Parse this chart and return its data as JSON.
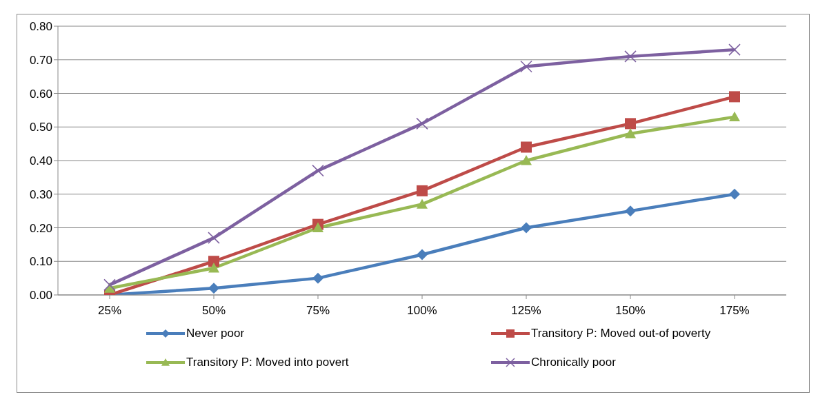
{
  "chart_data": {
    "type": "line",
    "categories": [
      "25%",
      "50%",
      "75%",
      "100%",
      "125%",
      "150%",
      "175%"
    ],
    "series": [
      {
        "name": "Never poor",
        "color": "#4a7ebb",
        "marker": "diamond",
        "values": [
          0.0,
          0.02,
          0.05,
          0.12,
          0.2,
          0.25,
          0.3
        ]
      },
      {
        "name": "Transitory P: Moved out-of poverty",
        "color": "#be4b48",
        "marker": "square",
        "values": [
          0.0,
          0.1,
          0.21,
          0.31,
          0.44,
          0.51,
          0.59
        ]
      },
      {
        "name": "Transitory P: Moved into povert",
        "color": "#98b954",
        "marker": "triangle",
        "values": [
          0.02,
          0.08,
          0.2,
          0.27,
          0.4,
          0.48,
          0.53
        ]
      },
      {
        "name": "Chronically poor",
        "color": "#7d60a0",
        "marker": "cross",
        "values": [
          0.03,
          0.17,
          0.37,
          0.51,
          0.68,
          0.71,
          0.73
        ]
      }
    ],
    "ylim": [
      0,
      0.8
    ],
    "yticks": [
      {
        "value": 0,
        "label": "0.00"
      },
      {
        "value": 0.1,
        "label": "0.10"
      },
      {
        "value": 0.2,
        "label": "0.20"
      },
      {
        "value": 0.3,
        "label": "0.30"
      },
      {
        "value": 0.4,
        "label": "0.40"
      },
      {
        "value": 0.5,
        "label": "0.50"
      },
      {
        "value": 0.6,
        "label": "0.60"
      },
      {
        "value": 0.7,
        "label": "0.70"
      },
      {
        "value": 0.8,
        "label": "0.80"
      }
    ],
    "grid": "y",
    "legend": "bottom",
    "line_style": "solid"
  }
}
